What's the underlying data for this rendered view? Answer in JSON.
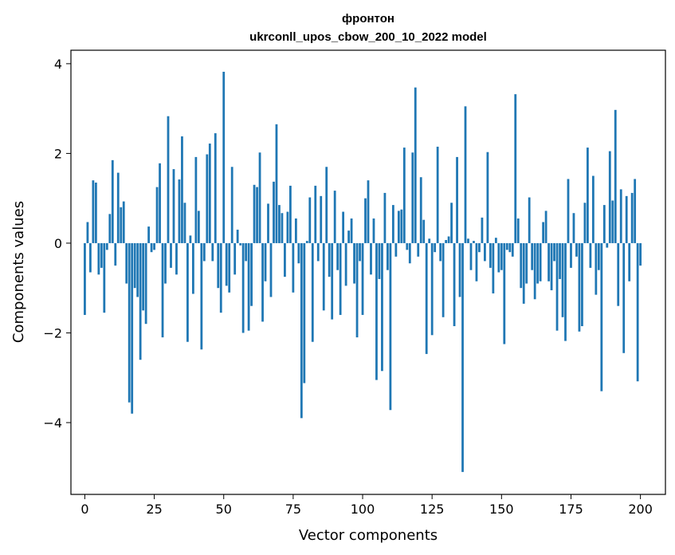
{
  "chart_data": {
    "type": "bar",
    "title_line1": "фронтон",
    "title_line2": "ukrconll_upos_cbow_200_10_2022 model",
    "xlabel": "Vector components",
    "ylabel": "Components values",
    "xlim": [
      -5,
      209
    ],
    "ylim": [
      -5.6,
      4.3
    ],
    "xticks": [
      0,
      25,
      50,
      75,
      100,
      125,
      150,
      175,
      200
    ],
    "yticks": [
      -4,
      -2,
      0,
      2,
      4
    ],
    "xtick_labels": [
      "0",
      "25",
      "50",
      "75",
      "100",
      "125",
      "150",
      "175",
      "200"
    ],
    "ytick_labels": [
      "−4",
      "−2",
      "0",
      "2",
      "4"
    ],
    "grid": false,
    "bar_color": "#1f77b4",
    "values": [
      -1.6,
      0.47,
      -0.65,
      1.4,
      1.35,
      -0.7,
      -0.55,
      -1.55,
      -0.15,
      0.65,
      1.85,
      -0.5,
      1.57,
      0.8,
      0.93,
      -0.9,
      -3.55,
      -3.8,
      -1.0,
      -1.2,
      -2.6,
      -1.5,
      -1.8,
      0.37,
      -0.2,
      -0.15,
      1.25,
      1.78,
      -2.1,
      -0.9,
      2.83,
      -0.55,
      1.65,
      -0.7,
      1.42,
      2.38,
      0.9,
      -2.2,
      0.17,
      -1.13,
      1.92,
      0.72,
      -2.37,
      -0.4,
      1.98,
      2.22,
      -0.4,
      2.45,
      -1.0,
      -1.55,
      3.82,
      -0.95,
      -1.1,
      1.7,
      -0.7,
      0.3,
      -0.05,
      -2.0,
      -0.4,
      -1.95,
      -1.4,
      1.3,
      1.25,
      2.02,
      -1.75,
      -0.85,
      0.88,
      -1.2,
      1.37,
      2.65,
      0.85,
      0.67,
      -0.75,
      0.7,
      1.28,
      -1.1,
      0.55,
      -0.45,
      -3.9,
      -3.12,
      0.05,
      1.02,
      -2.2,
      1.28,
      -0.4,
      1.05,
      -1.5,
      1.7,
      -0.75,
      -1.7,
      1.17,
      -0.6,
      -1.6,
      0.7,
      -0.95,
      0.28,
      0.55,
      -0.9,
      -2.1,
      -0.4,
      -1.6,
      1.0,
      1.4,
      -0.7,
      0.55,
      -3.05,
      -0.8,
      -2.85,
      1.12,
      -0.6,
      -3.72,
      0.85,
      -0.3,
      0.72,
      0.75,
      2.13,
      -0.15,
      -0.45,
      2.02,
      3.47,
      -0.3,
      1.47,
      0.52,
      -2.47,
      0.1,
      -2.05,
      -0.2,
      2.15,
      -0.4,
      -1.65,
      0.07,
      0.15,
      0.9,
      -1.85,
      1.92,
      -1.2,
      -5.1,
      3.05,
      0.1,
      -0.6,
      0.05,
      -0.85,
      -0.2,
      0.57,
      -0.4,
      2.03,
      -0.55,
      -1.12,
      0.12,
      -0.65,
      -0.6,
      -2.25,
      -0.15,
      -0.2,
      -0.3,
      3.32,
      0.55,
      -1.0,
      -1.35,
      -0.9,
      1.02,
      -0.6,
      -1.25,
      -0.9,
      -0.85,
      0.47,
      0.72,
      -0.85,
      -1.05,
      -0.4,
      -1.95,
      -0.8,
      -1.65,
      -2.18,
      1.43,
      -0.55,
      0.67,
      -0.3,
      -1.97,
      -1.85,
      0.9,
      2.13,
      -0.55,
      1.5,
      -1.15,
      -0.6,
      -3.3,
      0.85,
      -0.1,
      2.05,
      0.95,
      2.97,
      -1.4,
      1.2,
      -2.45,
      1.05,
      -0.85,
      1.12,
      1.43,
      -3.08,
      -0.5
    ]
  }
}
